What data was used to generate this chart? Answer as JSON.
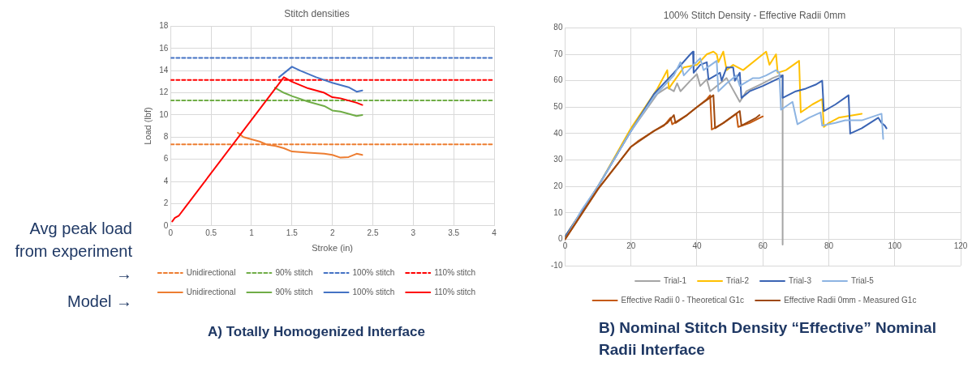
{
  "chart_data": [
    {
      "type": "line",
      "title": "Stitch densities",
      "xlabel": "Stroke (in)",
      "ylabel": "Load (lbf)",
      "xlim": [
        0,
        4
      ],
      "xticks": [
        0,
        0.5,
        1,
        1.5,
        2,
        2.5,
        3,
        3.5,
        4
      ],
      "ylim": [
        0,
        18
      ],
      "yticks": [
        0,
        2,
        4,
        6,
        8,
        10,
        12,
        14,
        16,
        18
      ],
      "grid": true,
      "legend": "bottom",
      "marker": "none",
      "annotations": [
        "Avg peak load from experiment →",
        "Model →",
        "A) Totally Homogenized Interface"
      ],
      "series": [
        {
          "name": "Unidirectional",
          "color": "#ed7d31",
          "line_style": "dashed",
          "x": [
            0,
            4
          ],
          "values": [
            7.35,
            7.35
          ]
        },
        {
          "name": "90% stitch",
          "color": "#70ad47",
          "line_style": "dashed",
          "x": [
            0,
            4
          ],
          "values": [
            11.3,
            11.3
          ]
        },
        {
          "name": "100% stitch",
          "color": "#4472c4",
          "line_style": "dashed",
          "x": [
            0,
            4
          ],
          "values": [
            15.15,
            15.15
          ]
        },
        {
          "name": "110% stitch",
          "color": "#ff0000",
          "line_style": "dashed",
          "x": [
            0,
            4
          ],
          "values": [
            13.15,
            13.15
          ]
        },
        {
          "name": "Unidirectional",
          "color": "#ed7d31",
          "line_style": "solid",
          "x": [
            0.83,
            0.9,
            1,
            1.1,
            1.2,
            1.3,
            1.4,
            1.5,
            1.7,
            1.9,
            2,
            2.1,
            2.2,
            2.3,
            2.37
          ],
          "values": [
            8.4,
            8.0,
            7.8,
            7.6,
            7.3,
            7.2,
            7.0,
            6.7,
            6.6,
            6.5,
            6.4,
            6.15,
            6.2,
            6.5,
            6.4
          ]
        },
        {
          "name": "90% stitch",
          "color": "#70ad47",
          "line_style": "solid",
          "x": [
            1.29,
            1.4,
            1.5,
            1.7,
            1.9,
            2,
            2.1,
            2.2,
            2.3,
            2.37
          ],
          "values": [
            12.45,
            12.0,
            11.7,
            11.2,
            10.8,
            10.4,
            10.3,
            10.1,
            9.9,
            10.0
          ]
        },
        {
          "name": "100% stitch",
          "color": "#4472c4",
          "line_style": "solid",
          "x": [
            1.34,
            1.5,
            1.6,
            1.8,
            2,
            2.1,
            2.2,
            2.3,
            2.37
          ],
          "values": [
            13.4,
            14.35,
            14.0,
            13.4,
            12.9,
            12.7,
            12.5,
            12.1,
            12.2
          ]
        },
        {
          "name": "110% stitch",
          "color": "#ff0000",
          "line_style": "solid",
          "x": [
            0.02,
            0.05,
            0.1,
            1.4,
            1.5,
            1.7,
            1.9,
            2,
            2.1,
            2.2,
            2.3,
            2.37
          ],
          "values": [
            0.4,
            0.7,
            0.9,
            13.4,
            13.0,
            12.4,
            12.0,
            11.6,
            11.5,
            11.3,
            11.1,
            10.9
          ]
        }
      ]
    },
    {
      "type": "line",
      "title": "100% Stitch Density - Effective Radii 0mm",
      "xlim": [
        0,
        120
      ],
      "xticks": [
        0,
        20,
        40,
        60,
        80,
        100,
        120
      ],
      "ylim": [
        -10,
        80
      ],
      "yticks": [
        -10,
        0,
        10,
        20,
        30,
        40,
        50,
        60,
        70,
        80
      ],
      "grid": true,
      "legend": "bottom",
      "marker": "none",
      "annotations": [
        "B) Nominal Stitch Density “Effective” Nominal Radii Interface"
      ],
      "series": [
        {
          "name": "Trial-1",
          "color": "#a5a5a5",
          "x": [
            0,
            10,
            20,
            28,
            31,
            33,
            34,
            35,
            38,
            40,
            41,
            43,
            44,
            47,
            49,
            53,
            55,
            60,
            63,
            65,
            66,
            66
          ],
          "values": [
            1,
            20,
            41,
            55,
            57.5,
            56,
            59,
            56,
            60,
            62.5,
            58,
            60.5,
            56,
            59,
            61,
            52,
            56,
            59,
            61,
            62,
            62,
            -2
          ]
        },
        {
          "name": "Trial-2",
          "color": "#ffc000",
          "x": [
            0,
            10,
            20,
            28,
            31,
            31.5,
            32,
            36,
            40,
            43,
            45,
            46,
            46.5,
            48,
            49,
            51,
            54,
            60,
            61,
            62,
            64,
            64.5,
            67,
            71,
            71.5,
            75,
            78,
            78.5,
            80,
            83,
            90
          ],
          "values": [
            1,
            20,
            42,
            57,
            64,
            57,
            58,
            65,
            66,
            70,
            71,
            70,
            67,
            71,
            64,
            66,
            64,
            70,
            71,
            66,
            70,
            63,
            64,
            67.5,
            48,
            51,
            53,
            42.5,
            44,
            46,
            47.5
          ]
        },
        {
          "name": "Trial-3",
          "color": "#3a64b4",
          "x": [
            0,
            10,
            20,
            27,
            33,
            38,
            38.8,
            39,
            41,
            43,
            43.5,
            47,
            47.5,
            49,
            51,
            51.5,
            53,
            53.5,
            56,
            60,
            65,
            66,
            66,
            70,
            73,
            76,
            78,
            78.5,
            82,
            86,
            86.5,
            90,
            95,
            96,
            97,
            97.5
          ],
          "values": [
            1,
            20,
            41,
            55,
            63,
            70,
            71,
            63,
            66,
            67,
            60.5,
            63,
            60,
            65,
            65,
            60,
            63,
            53.5,
            56,
            58,
            61,
            62,
            53.5,
            56,
            57,
            58.5,
            60,
            48.5,
            51,
            54.5,
            40,
            42,
            46,
            44,
            43,
            42
          ]
        },
        {
          "name": "Trial-5",
          "color": "#8db4e2",
          "x": [
            0,
            5,
            10,
            20,
            27,
            33,
            35,
            36,
            39,
            41,
            42,
            46,
            46.5,
            49,
            52,
            53,
            57,
            59,
            61,
            64,
            65,
            65.5,
            69,
            70.5,
            74,
            77.5,
            78,
            82,
            85,
            90,
            96,
            96.5
          ],
          "values": [
            0,
            11,
            20,
            41,
            54,
            62,
            67,
            62,
            66,
            68.5,
            64,
            67.5,
            56,
            59,
            62,
            58,
            61,
            61,
            62,
            64,
            63,
            49,
            52,
            43.5,
            46,
            48,
            43,
            44,
            45,
            45,
            47.5,
            38
          ]
        },
        {
          "name": "Effective Radii 0 - Theoretical G1c",
          "color": "#c55a11",
          "x": [
            0,
            10,
            20,
            22,
            27,
            30,
            32,
            32.5,
            37,
            40,
            43,
            44,
            44.5,
            48,
            52,
            52.5,
            56,
            60
          ],
          "values": [
            0,
            19,
            35,
            37,
            41,
            43,
            46,
            43.5,
            47,
            50,
            53,
            54.5,
            41.5,
            44,
            47.5,
            42.5,
            44,
            46.5
          ]
        },
        {
          "name": "Effective Radii 0mm - Measured G1c",
          "color": "#9e480e",
          "x": [
            0,
            10,
            20,
            27,
            31,
            33,
            33.5,
            37,
            40,
            45,
            45.5,
            48,
            53,
            53.5,
            58,
            59
          ],
          "values": [
            0,
            19,
            35,
            41,
            44,
            47,
            44,
            47,
            50,
            54.5,
            42,
            44,
            48.5,
            43,
            46,
            47
          ]
        }
      ]
    }
  ]
}
